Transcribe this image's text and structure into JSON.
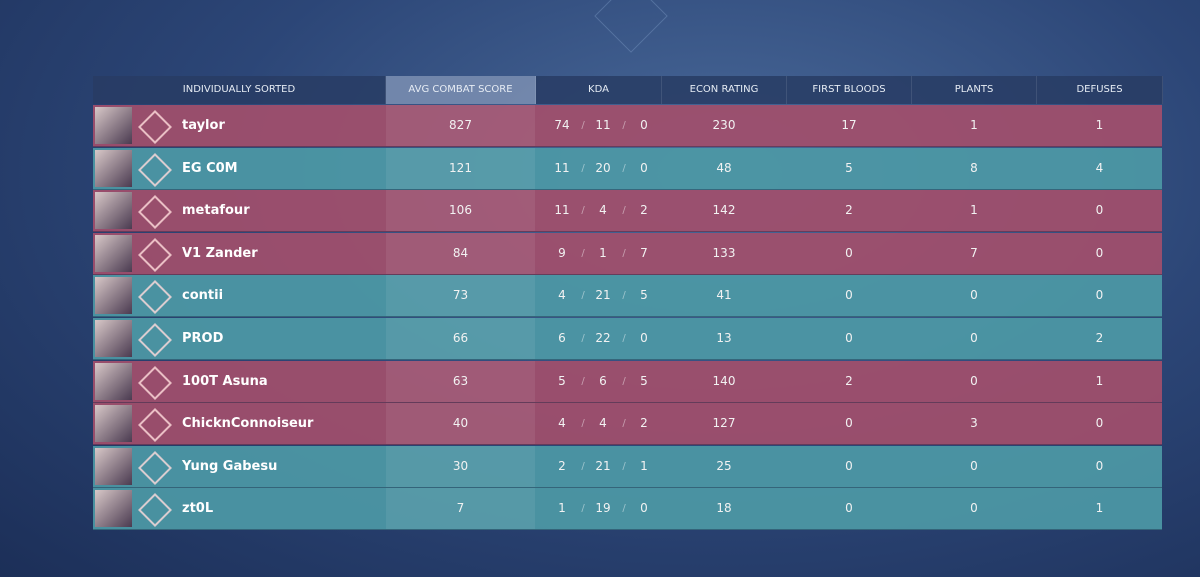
{
  "header": {
    "columns": [
      "INDIVIDUALLY SORTED",
      "AVG COMBAT SCORE",
      "KDA",
      "ECON RATING",
      "FIRST BLOODS",
      "PLANTS",
      "DEFUSES"
    ]
  },
  "kda_separator": "/",
  "rows": [
    {
      "name": "taylor",
      "color": "#a24f6c",
      "acs": 827,
      "kda": [
        74,
        11,
        0
      ],
      "econ": 230,
      "first_bloods": 17,
      "plants": 1,
      "defuses": 1
    },
    {
      "name": "EG C0M",
      "color": "#4d99a6",
      "acs": 121,
      "kda": [
        11,
        20,
        0
      ],
      "econ": 48,
      "first_bloods": 5,
      "plants": 8,
      "defuses": 4
    },
    {
      "name": "metafour",
      "color": "#a24f6c",
      "acs": 106,
      "kda": [
        11,
        4,
        2
      ],
      "econ": 142,
      "first_bloods": 2,
      "plants": 1,
      "defuses": 0
    },
    {
      "name": "V1 Zander",
      "color": "#a24f6c",
      "acs": 84,
      "kda": [
        9,
        1,
        7
      ],
      "econ": 133,
      "first_bloods": 0,
      "plants": 7,
      "defuses": 0
    },
    {
      "name": "contii",
      "color": "#4d99a6",
      "acs": 73,
      "kda": [
        4,
        21,
        5
      ],
      "econ": 41,
      "first_bloods": 0,
      "plants": 0,
      "defuses": 0
    },
    {
      "name": "PROD",
      "color": "#4d99a6",
      "acs": 66,
      "kda": [
        6,
        22,
        0
      ],
      "econ": 13,
      "first_bloods": 0,
      "plants": 0,
      "defuses": 2
    },
    {
      "name": "100T Asuna",
      "color": "#a24f6c",
      "acs": 63,
      "kda": [
        5,
        6,
        5
      ],
      "econ": 140,
      "first_bloods": 2,
      "plants": 0,
      "defuses": 1
    },
    {
      "name": "ChicknConnoiseur",
      "color": "#a24f6c",
      "acs": 40,
      "kda": [
        4,
        4,
        2
      ],
      "econ": 127,
      "first_bloods": 0,
      "plants": 3,
      "defuses": 0
    },
    {
      "name": "Yung Gabesu",
      "color": "#4d99a6",
      "acs": 30,
      "kda": [
        2,
        21,
        1
      ],
      "econ": 25,
      "first_bloods": 0,
      "plants": 0,
      "defuses": 0
    },
    {
      "name": "zt0L",
      "color": "#4d99a6",
      "acs": 7,
      "kda": [
        1,
        19,
        0
      ],
      "econ": 18,
      "first_bloods": 0,
      "plants": 0,
      "defuses": 1
    }
  ]
}
